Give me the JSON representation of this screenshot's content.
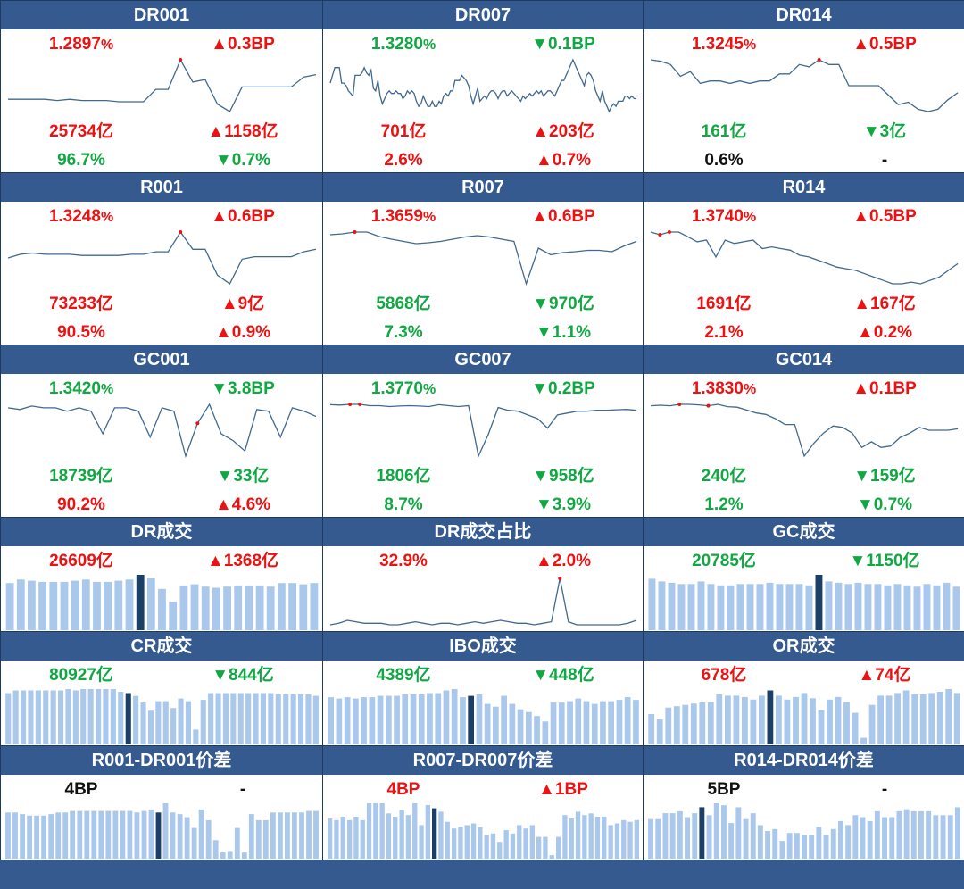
{
  "colors": {
    "header_bg": "#355a8f",
    "up": "#ee1111",
    "down": "#11a843",
    "neutral": "#111111",
    "bar": "#a9c8ec",
    "bar_highlight": "#1b3f66",
    "line": "#41698f",
    "marker": "#ee1111"
  },
  "chart_data": [
    {
      "type": "line",
      "title": "DR001",
      "rate": "1.2897",
      "rate_unit": "%",
      "rate_chg": "▲0.3BP",
      "rate_dir": "up",
      "vol": "25734亿",
      "vol_dir": "up",
      "vol_chg": "▲1158亿",
      "vol_chg_dir": "up",
      "share": "96.7%",
      "share_dir": "green",
      "share_chg": "▼0.7%",
      "share_chg_dir": "down",
      "y": [
        1.16,
        1.16,
        1.16,
        1.16,
        1.155,
        1.16,
        1.155,
        1.155,
        1.155,
        1.15,
        1.15,
        1.15,
        1.2,
        1.2,
        1.32,
        1.23,
        1.24,
        1.14,
        1.11,
        1.21,
        1.21,
        1.21,
        1.21,
        1.21,
        1.25,
        1.26
      ],
      "markers": [
        14
      ]
    },
    {
      "type": "line",
      "title": "DR007",
      "rate": "1.3280",
      "rate_unit": "%",
      "rate_chg": "▼0.1BP",
      "rate_dir": "down",
      "vol": "701亿",
      "vol_dir": "up",
      "vol_chg": "▲203亿",
      "vol_chg_dir": "up",
      "share": "2.6%",
      "share_dir": "red",
      "share_chg": "▲0.7%",
      "share_chg_dir": "up",
      "y": [
        1.295,
        1.31,
        1.325,
        1.325,
        1.325,
        1.295,
        1.295,
        1.29,
        1.28,
        1.275,
        1.27,
        1.31,
        1.31,
        1.31,
        1.315,
        1.325,
        1.315,
        1.31,
        1.32,
        1.285,
        1.28,
        1.3,
        1.27,
        1.255,
        1.265,
        1.275,
        1.28,
        1.275,
        1.275,
        1.28,
        1.275,
        1.275,
        1.265,
        1.27,
        1.28,
        1.275,
        1.28,
        1.275,
        1.26,
        1.25,
        1.255,
        1.27,
        1.26,
        1.25,
        1.25,
        1.26,
        1.25,
        1.25,
        1.26,
        1.255,
        1.27,
        1.275,
        1.27,
        1.28,
        1.28,
        1.3,
        1.3,
        1.3,
        1.31,
        1.305,
        1.3,
        1.29,
        1.27,
        1.255,
        1.27,
        1.285,
        1.26,
        1.265,
        1.27,
        1.265,
        1.275,
        1.28,
        1.28,
        1.275,
        1.265,
        1.275,
        1.28,
        1.28,
        1.27,
        1.275,
        1.28,
        1.275,
        1.27,
        1.265,
        1.26,
        1.27,
        1.265,
        1.27,
        1.275,
        1.27,
        1.275,
        1.28,
        1.275,
        1.28,
        1.27,
        1.275,
        1.28,
        1.28,
        1.275,
        1.27,
        1.28,
        1.29,
        1.3,
        1.3,
        1.31,
        1.32,
        1.33,
        1.34,
        1.33,
        1.32,
        1.31,
        1.3,
        1.29,
        1.31,
        1.315,
        1.31,
        1.3,
        1.28,
        1.27,
        1.26,
        1.28,
        1.26,
        1.25,
        1.24,
        1.25,
        1.255,
        1.25,
        1.26,
        1.26,
        1.26,
        1.27,
        1.27,
        1.265,
        1.27,
        1.265,
        1.265
      ],
      "markers": []
    },
    {
      "type": "line",
      "title": "DR014",
      "rate": "1.3245",
      "rate_unit": "%",
      "rate_chg": "▲0.5BP",
      "rate_dir": "up",
      "vol": "161亿",
      "vol_dir": "green",
      "vol_chg": "▼3亿",
      "vol_chg_dir": "down",
      "share": "0.6%",
      "share_dir": "black",
      "share_chg": "-",
      "share_chg_dir": "black",
      "y": [
        1.395,
        1.392,
        1.385,
        1.36,
        1.37,
        1.345,
        1.35,
        1.35,
        1.345,
        1.35,
        1.345,
        1.35,
        1.35,
        1.365,
        1.365,
        1.385,
        1.38,
        1.395,
        1.385,
        1.385,
        1.34,
        1.34,
        1.34,
        1.34,
        1.32,
        1.3,
        1.305,
        1.29,
        1.285,
        1.29,
        1.31,
        1.325
      ],
      "markers": [
        17
      ]
    },
    {
      "type": "line",
      "title": "R001",
      "rate": "1.3248",
      "rate_unit": "%",
      "rate_chg": "▲0.6BP",
      "rate_dir": "up",
      "vol": "73233亿",
      "vol_dir": "up",
      "vol_chg": "▲9亿",
      "vol_chg_dir": "up",
      "share": "90.5%",
      "share_dir": "red",
      "share_chg": "▲0.9%",
      "share_chg_dir": "up",
      "y": [
        1.24,
        1.255,
        1.26,
        1.255,
        1.255,
        1.255,
        1.25,
        1.25,
        1.25,
        1.25,
        1.255,
        1.255,
        1.265,
        1.265,
        1.345,
        1.275,
        1.275,
        1.17,
        1.135,
        1.235,
        1.245,
        1.245,
        1.245,
        1.245,
        1.265,
        1.275
      ],
      "markers": [
        14
      ]
    },
    {
      "type": "line",
      "title": "R007",
      "rate": "1.3659",
      "rate_unit": "%",
      "rate_chg": "▲0.6BP",
      "rate_dir": "up",
      "vol": "5868亿",
      "vol_dir": "green",
      "vol_chg": "▼970亿",
      "vol_chg_dir": "down",
      "share": "7.3%",
      "share_dir": "green",
      "share_chg": "▼1.1%",
      "share_chg_dir": "down",
      "y": [
        1.36,
        1.362,
        1.366,
        1.366,
        1.356,
        1.35,
        1.345,
        1.34,
        1.342,
        1.345,
        1.35,
        1.355,
        1.358,
        1.355,
        1.35,
        1.345,
        1.25,
        1.33,
        1.315,
        1.32,
        1.322,
        1.325,
        1.325,
        1.322,
        1.335,
        1.345
      ],
      "markers": [
        2
      ]
    },
    {
      "type": "line",
      "title": "R014",
      "rate": "1.3740",
      "rate_unit": "%",
      "rate_chg": "▲0.5BP",
      "rate_dir": "up",
      "vol": "1691亿",
      "vol_dir": "up",
      "vol_chg": "▲167亿",
      "vol_chg_dir": "up",
      "share": "2.1%",
      "share_dir": "red",
      "share_chg": "▲0.2%",
      "share_chg_dir": "up",
      "y": [
        1.374,
        1.366,
        1.374,
        1.374,
        1.36,
        1.345,
        1.35,
        1.3,
        1.35,
        1.34,
        1.345,
        1.35,
        1.325,
        1.33,
        1.325,
        1.32,
        1.305,
        1.3,
        1.29,
        1.28,
        1.27,
        1.265,
        1.26,
        1.25,
        1.24,
        1.23,
        1.22,
        1.22,
        1.225,
        1.22,
        1.23,
        1.24,
        1.26,
        1.28
      ],
      "markers": [
        1,
        2
      ]
    },
    {
      "type": "line",
      "title": "GC001",
      "rate": "1.3420",
      "rate_unit": "%",
      "rate_chg": "▼3.8BP",
      "rate_dir": "down",
      "vol": "18739亿",
      "vol_dir": "green",
      "vol_chg": "▼33亿",
      "vol_chg_dir": "down",
      "share": "90.2%",
      "share_dir": "red",
      "share_chg": "▲4.6%",
      "share_chg_dir": "up",
      "y": [
        1.37,
        1.365,
        1.375,
        1.37,
        1.37,
        1.36,
        1.37,
        1.36,
        1.295,
        1.37,
        1.37,
        1.36,
        1.285,
        1.37,
        1.36,
        1.23,
        1.325,
        1.38,
        1.295,
        1.275,
        1.245,
        1.365,
        1.36,
        1.285,
        1.37,
        1.36,
        1.345
      ],
      "markers": [
        16
      ]
    },
    {
      "type": "line",
      "title": "GC007",
      "rate": "1.3770",
      "rate_unit": "%",
      "rate_chg": "▼0.2BP",
      "rate_dir": "down",
      "vol": "1806亿",
      "vol_dir": "green",
      "vol_chg": "▼958亿",
      "vol_chg_dir": "down",
      "share": "8.7%",
      "share_dir": "green",
      "share_chg": "▼3.9%",
      "share_chg_dir": "down",
      "y": [
        1.375,
        1.373,
        1.377,
        1.377,
        1.37,
        1.37,
        1.365,
        1.368,
        1.37,
        1.368,
        1.365,
        1.375,
        1.37,
        1.365,
        1.37,
        1.1,
        1.215,
        1.36,
        1.345,
        1.34,
        1.32,
        1.3,
        1.25,
        1.32,
        1.33,
        1.34,
        1.34,
        1.345,
        1.345,
        1.348,
        1.35,
        1.345
      ],
      "markers": [
        2,
        3
      ]
    },
    {
      "type": "line",
      "title": "GC014",
      "rate": "1.3830",
      "rate_unit": "%",
      "rate_chg": "▲0.1BP",
      "rate_dir": "up",
      "vol": "240亿",
      "vol_dir": "green",
      "vol_chg": "▼159亿",
      "vol_chg_dir": "down",
      "share": "1.2%",
      "share_dir": "green",
      "share_chg": "▼0.7%",
      "share_chg_dir": "down",
      "y": [
        1.375,
        1.377,
        1.375,
        1.38,
        1.38,
        1.378,
        1.375,
        1.38,
        1.372,
        1.37,
        1.36,
        1.35,
        1.345,
        1.33,
        1.31,
        1.31,
        1.2,
        1.245,
        1.28,
        1.305,
        1.3,
        1.28,
        1.23,
        1.25,
        1.23,
        1.235,
        1.265,
        1.28,
        1.3,
        1.29,
        1.29,
        1.29,
        1.295
      ],
      "markers": [
        3,
        6
      ]
    },
    {
      "type": "bar",
      "title": "DR成交",
      "v1": "26609亿",
      "v1_dir": "up",
      "v2": "▲1368亿",
      "v2_dir": "up",
      "values": [
        80,
        86,
        84,
        82,
        82,
        82,
        84,
        86,
        82,
        82,
        84,
        86,
        94,
        88,
        70,
        48,
        76,
        78,
        74,
        72,
        74,
        76,
        76,
        76,
        74,
        80,
        80,
        78,
        80
      ],
      "highlight": 12
    },
    {
      "type": "line",
      "title": "DR成交占比",
      "v1": "32.9%",
      "v1_dir": "up",
      "v2": "▲2.0%",
      "v2_dir": "up",
      "y": [
        3,
        4,
        6,
        5,
        4,
        4,
        4,
        3,
        3,
        4,
        5,
        4,
        3,
        4,
        4,
        3,
        4,
        5,
        4,
        5,
        6,
        5,
        4,
        4,
        3,
        4,
        5,
        34,
        5,
        3,
        3,
        3,
        3,
        3,
        3,
        4,
        6
      ],
      "markers": [
        27
      ]
    },
    {
      "type": "bar",
      "title": "GC成交",
      "v1": "20785亿",
      "v1_dir": "green",
      "v2": "▼1150亿",
      "v2_dir": "down",
      "values": [
        78,
        74,
        72,
        70,
        70,
        74,
        70,
        68,
        68,
        70,
        70,
        70,
        72,
        70,
        70,
        70,
        68,
        84,
        74,
        72,
        70,
        72,
        70,
        70,
        68,
        70,
        68,
        66,
        70,
        68,
        72,
        66
      ],
      "highlight": 17
    },
    {
      "type": "bar",
      "title": "CR成交",
      "v1": "80927亿",
      "v1_dir": "green",
      "v2": "▼844亿",
      "v2_dir": "down",
      "values": [
        76,
        80,
        80,
        80,
        80,
        80,
        80,
        80,
        82,
        80,
        82,
        82,
        82,
        82,
        82,
        78,
        76,
        72,
        62,
        50,
        64,
        64,
        54,
        68,
        64,
        22,
        66,
        76,
        76,
        76,
        76,
        76,
        76,
        76,
        76,
        76,
        74,
        74,
        74,
        74,
        74,
        72
      ],
      "highlight": 16
    },
    {
      "type": "bar",
      "title": "IBO成交",
      "v1": "4389亿",
      "v1_dir": "green",
      "v2": "▼448亿",
      "v2_dir": "down",
      "values": [
        70,
        68,
        70,
        68,
        70,
        70,
        72,
        72,
        72,
        74,
        74,
        74,
        76,
        76,
        80,
        82,
        70,
        72,
        74,
        60,
        56,
        72,
        60,
        52,
        48,
        42,
        34,
        62,
        62,
        64,
        68,
        64,
        60,
        64,
        64,
        66,
        70,
        66
      ],
      "highlight": 17
    },
    {
      "type": "bar",
      "title": "OR成交",
      "v1": "678亿",
      "v1_dir": "up",
      "v2": "▲74亿",
      "v2_dir": "up",
      "values": [
        46,
        38,
        56,
        58,
        60,
        62,
        64,
        64,
        76,
        74,
        74,
        72,
        68,
        74,
        82,
        74,
        68,
        72,
        78,
        70,
        52,
        68,
        72,
        64,
        48,
        10,
        60,
        74,
        74,
        78,
        82,
        76,
        76,
        78,
        80,
        84,
        78
      ],
      "highlight": 14
    },
    {
      "type": "bar",
      "title": "R001-DR001价差",
      "v1": "4BP",
      "v1_dir": "black",
      "v2": "-",
      "v2_dir": "black",
      "values": [
        60,
        60,
        58,
        56,
        56,
        56,
        58,
        60,
        60,
        62,
        62,
        62,
        62,
        62,
        62,
        62,
        62,
        62,
        60,
        62,
        64,
        60,
        72,
        60,
        58,
        54,
        40,
        64,
        50,
        24,
        8,
        10,
        40,
        8,
        58,
        50,
        50,
        60,
        60,
        60,
        60,
        60,
        62,
        62
      ],
      "highlight": 21
    },
    {
      "type": "bar",
      "title": "R007-DR007价差",
      "v1": "4BP",
      "v1_dir": "up",
      "v2": "▲1BP",
      "v2_dir": "up",
      "values": [
        48,
        46,
        50,
        46,
        50,
        46,
        66,
        66,
        66,
        54,
        50,
        58,
        52,
        66,
        40,
        64,
        60,
        56,
        44,
        36,
        38,
        40,
        42,
        38,
        28,
        30,
        20,
        34,
        30,
        40,
        36,
        40,
        26,
        26,
        4,
        26,
        52,
        48,
        56,
        52,
        54,
        50,
        50,
        40,
        42,
        46,
        44,
        46
      ],
      "highlight": 16
    },
    {
      "type": "bar",
      "title": "R014-DR014价差",
      "v1": "5BP",
      "v1_dir": "black",
      "v2": "-",
      "v2_dir": "black",
      "values": [
        40,
        40,
        46,
        46,
        48,
        42,
        46,
        52,
        44,
        56,
        54,
        36,
        52,
        40,
        46,
        34,
        28,
        30,
        18,
        26,
        26,
        24,
        24,
        32,
        24,
        30,
        38,
        34,
        44,
        42,
        38,
        48,
        42,
        42,
        48,
        50,
        48,
        48,
        48,
        44,
        44,
        44,
        52
      ],
      "highlight": 7
    }
  ]
}
